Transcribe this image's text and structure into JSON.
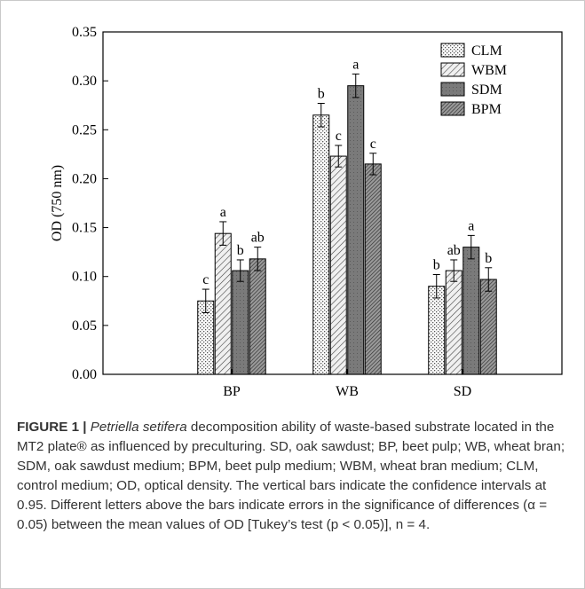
{
  "chart_data": {
    "type": "bar",
    "title": "",
    "xlabel": "",
    "ylabel": "OD (750 nm)",
    "ylim": [
      0,
      0.35
    ],
    "yticks": [
      "0.00",
      "0.05",
      "0.10",
      "0.15",
      "0.20",
      "0.25",
      "0.30",
      "0.35"
    ],
    "categories": [
      "BP",
      "WB",
      "SD"
    ],
    "legend_position": "top-right",
    "series": [
      {
        "name": "CLM",
        "pattern": "dots",
        "values": [
          0.075,
          0.265,
          0.09
        ],
        "errors": [
          0.012,
          0.012,
          0.012
        ],
        "letters": [
          "c",
          "b",
          "b"
        ]
      },
      {
        "name": "WBM",
        "pattern": "diagonal-hatch",
        "values": [
          0.144,
          0.223,
          0.106
        ],
        "errors": [
          0.012,
          0.011,
          0.011
        ],
        "letters": [
          "a",
          "c",
          "ab"
        ]
      },
      {
        "name": "SDM",
        "pattern": "dark-gray",
        "values": [
          0.106,
          0.295,
          0.13
        ],
        "errors": [
          0.011,
          0.012,
          0.012
        ],
        "letters": [
          "b",
          "a",
          "a"
        ]
      },
      {
        "name": "BPM",
        "pattern": "dense-hatch",
        "values": [
          0.118,
          0.215,
          0.097
        ],
        "errors": [
          0.012,
          0.011,
          0.012
        ],
        "letters": [
          "ab",
          "c",
          "b"
        ]
      }
    ]
  },
  "caption": {
    "label": "FIGURE 1 |",
    "species": "Petriella setifera",
    "text": " decomposition ability of waste-based substrate located in the MT2 plate® as influenced by preculturing. SD, oak sawdust; BP, beet pulp; WB, wheat bran; SDM, oak sawdust medium; BPM, beet pulp medium; WBM, wheat bran medium; CLM, control medium; OD, optical density. The vertical bars indicate the confidence intervals at 0.95. Different letters above the bars indicate errors in the significance of differences (α = 0.05) between the mean values of OD [Tukey’s test (p < 0.05)], n = 4."
  }
}
